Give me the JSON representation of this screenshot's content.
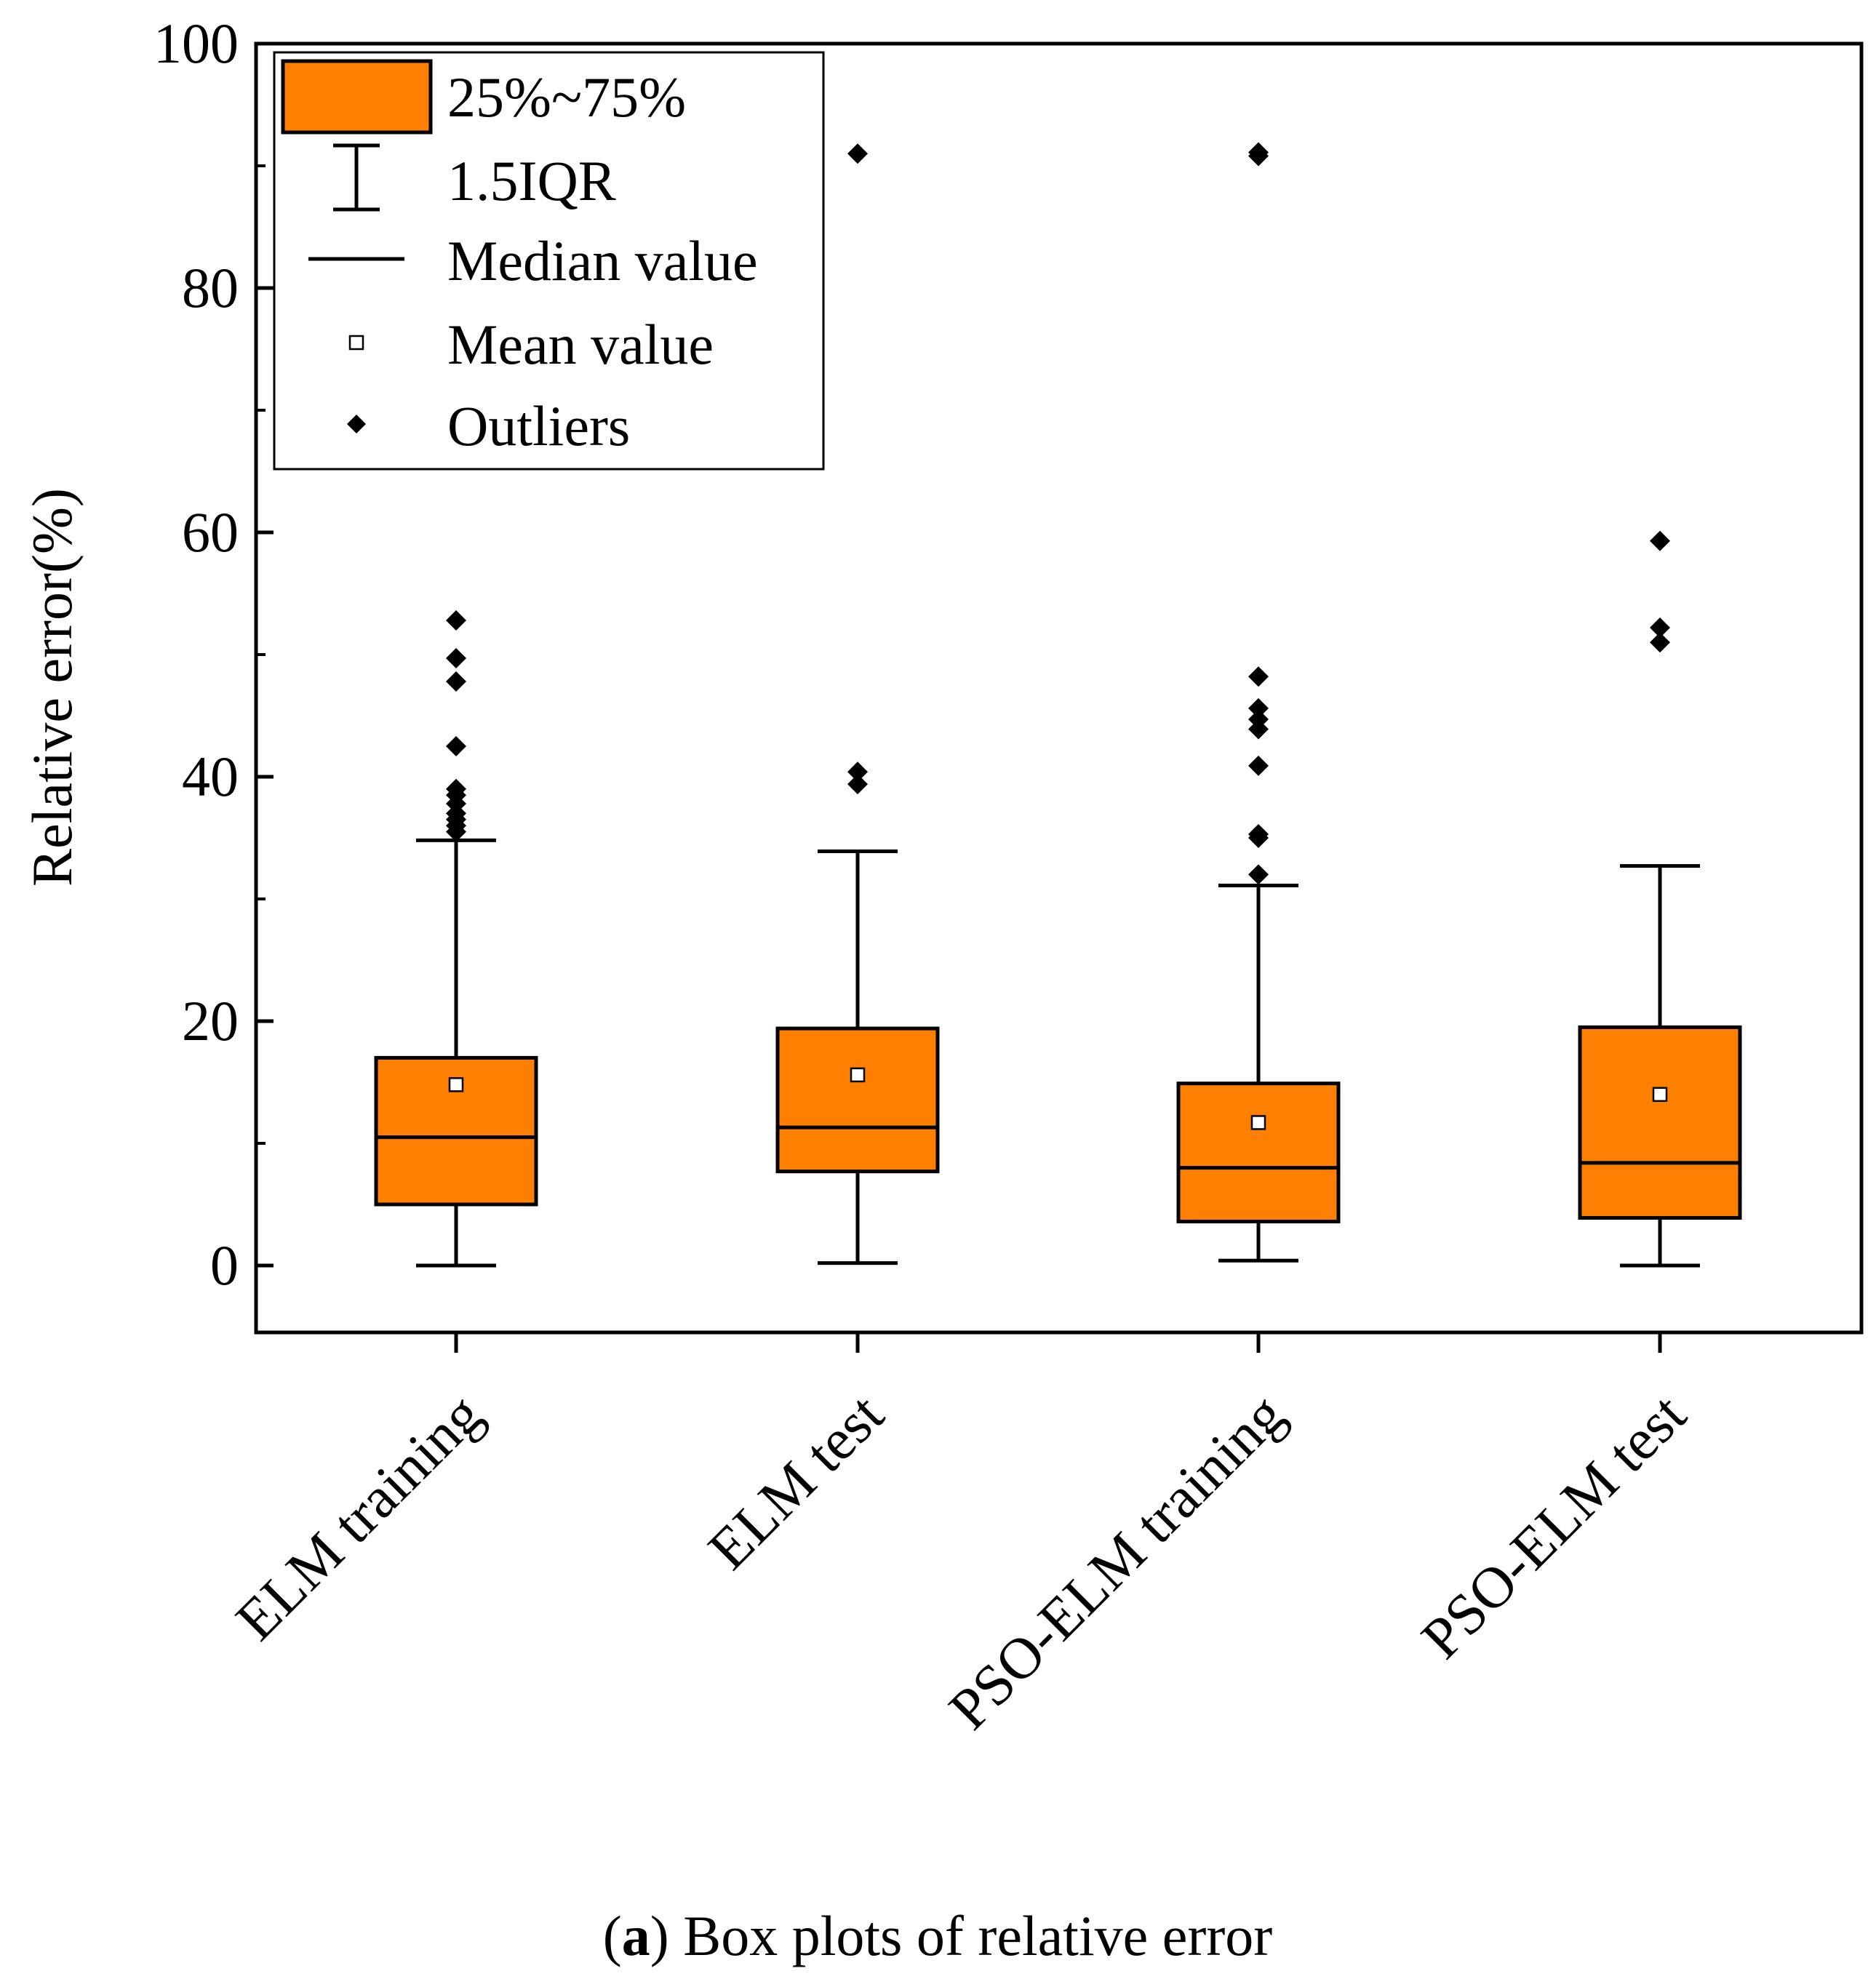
{
  "chart_data": {
    "type": "box",
    "ylabel": "Relative error(%)",
    "xlabel": "",
    "ylim": [
      -5,
      100
    ],
    "yticks": [
      0,
      20,
      40,
      60,
      80,
      100
    ],
    "ytick_labels": [
      "0",
      "20",
      "40",
      "60",
      "80",
      "100"
    ],
    "categories": [
      "ELM training",
      "ELM test",
      "PSO-ELM training",
      "PSO-ELM test"
    ],
    "box_color": "#ff8000",
    "boxes": [
      {
        "category": "ELM training",
        "whisker_low": 0,
        "q1": 5.0,
        "median": 10.5,
        "q3": 17.0,
        "whisker_high": 34.8,
        "mean": 14.8,
        "outliers": [
          35.5,
          36.0,
          36.5,
          37.0,
          37.8,
          38.5,
          39.0,
          42.5,
          47.8,
          49.7,
          52.8
        ]
      },
      {
        "category": "ELM test",
        "whisker_low": 0.2,
        "q1": 7.7,
        "median": 11.3,
        "q3": 19.4,
        "whisker_high": 33.9,
        "mean": 15.6,
        "outliers": [
          39.4,
          40.4,
          91.0
        ]
      },
      {
        "category": "PSO-ELM training",
        "whisker_low": 0.4,
        "q1": 3.6,
        "median": 8.0,
        "q3": 14.9,
        "whisker_high": 31.1,
        "mean": 11.7,
        "outliers": [
          32.0,
          35.0,
          35.3,
          40.9,
          43.9,
          44.7,
          45.6,
          48.2,
          90.8,
          91.1
        ]
      },
      {
        "category": "PSO-ELM test",
        "whisker_low": 0,
        "q1": 3.9,
        "median": 8.4,
        "q3": 19.5,
        "whisker_high": 32.7,
        "mean": 14.0,
        "outliers": [
          51.0,
          52.2,
          59.3
        ]
      }
    ],
    "legend": {
      "position": "top-left",
      "entries": [
        "25%~75%",
        "1.5IQR",
        "Median value",
        "Mean value",
        "Outliers"
      ]
    }
  },
  "caption": {
    "letter": "a",
    "open": "(",
    "close": ")",
    "text": " Box plots of relative error"
  }
}
